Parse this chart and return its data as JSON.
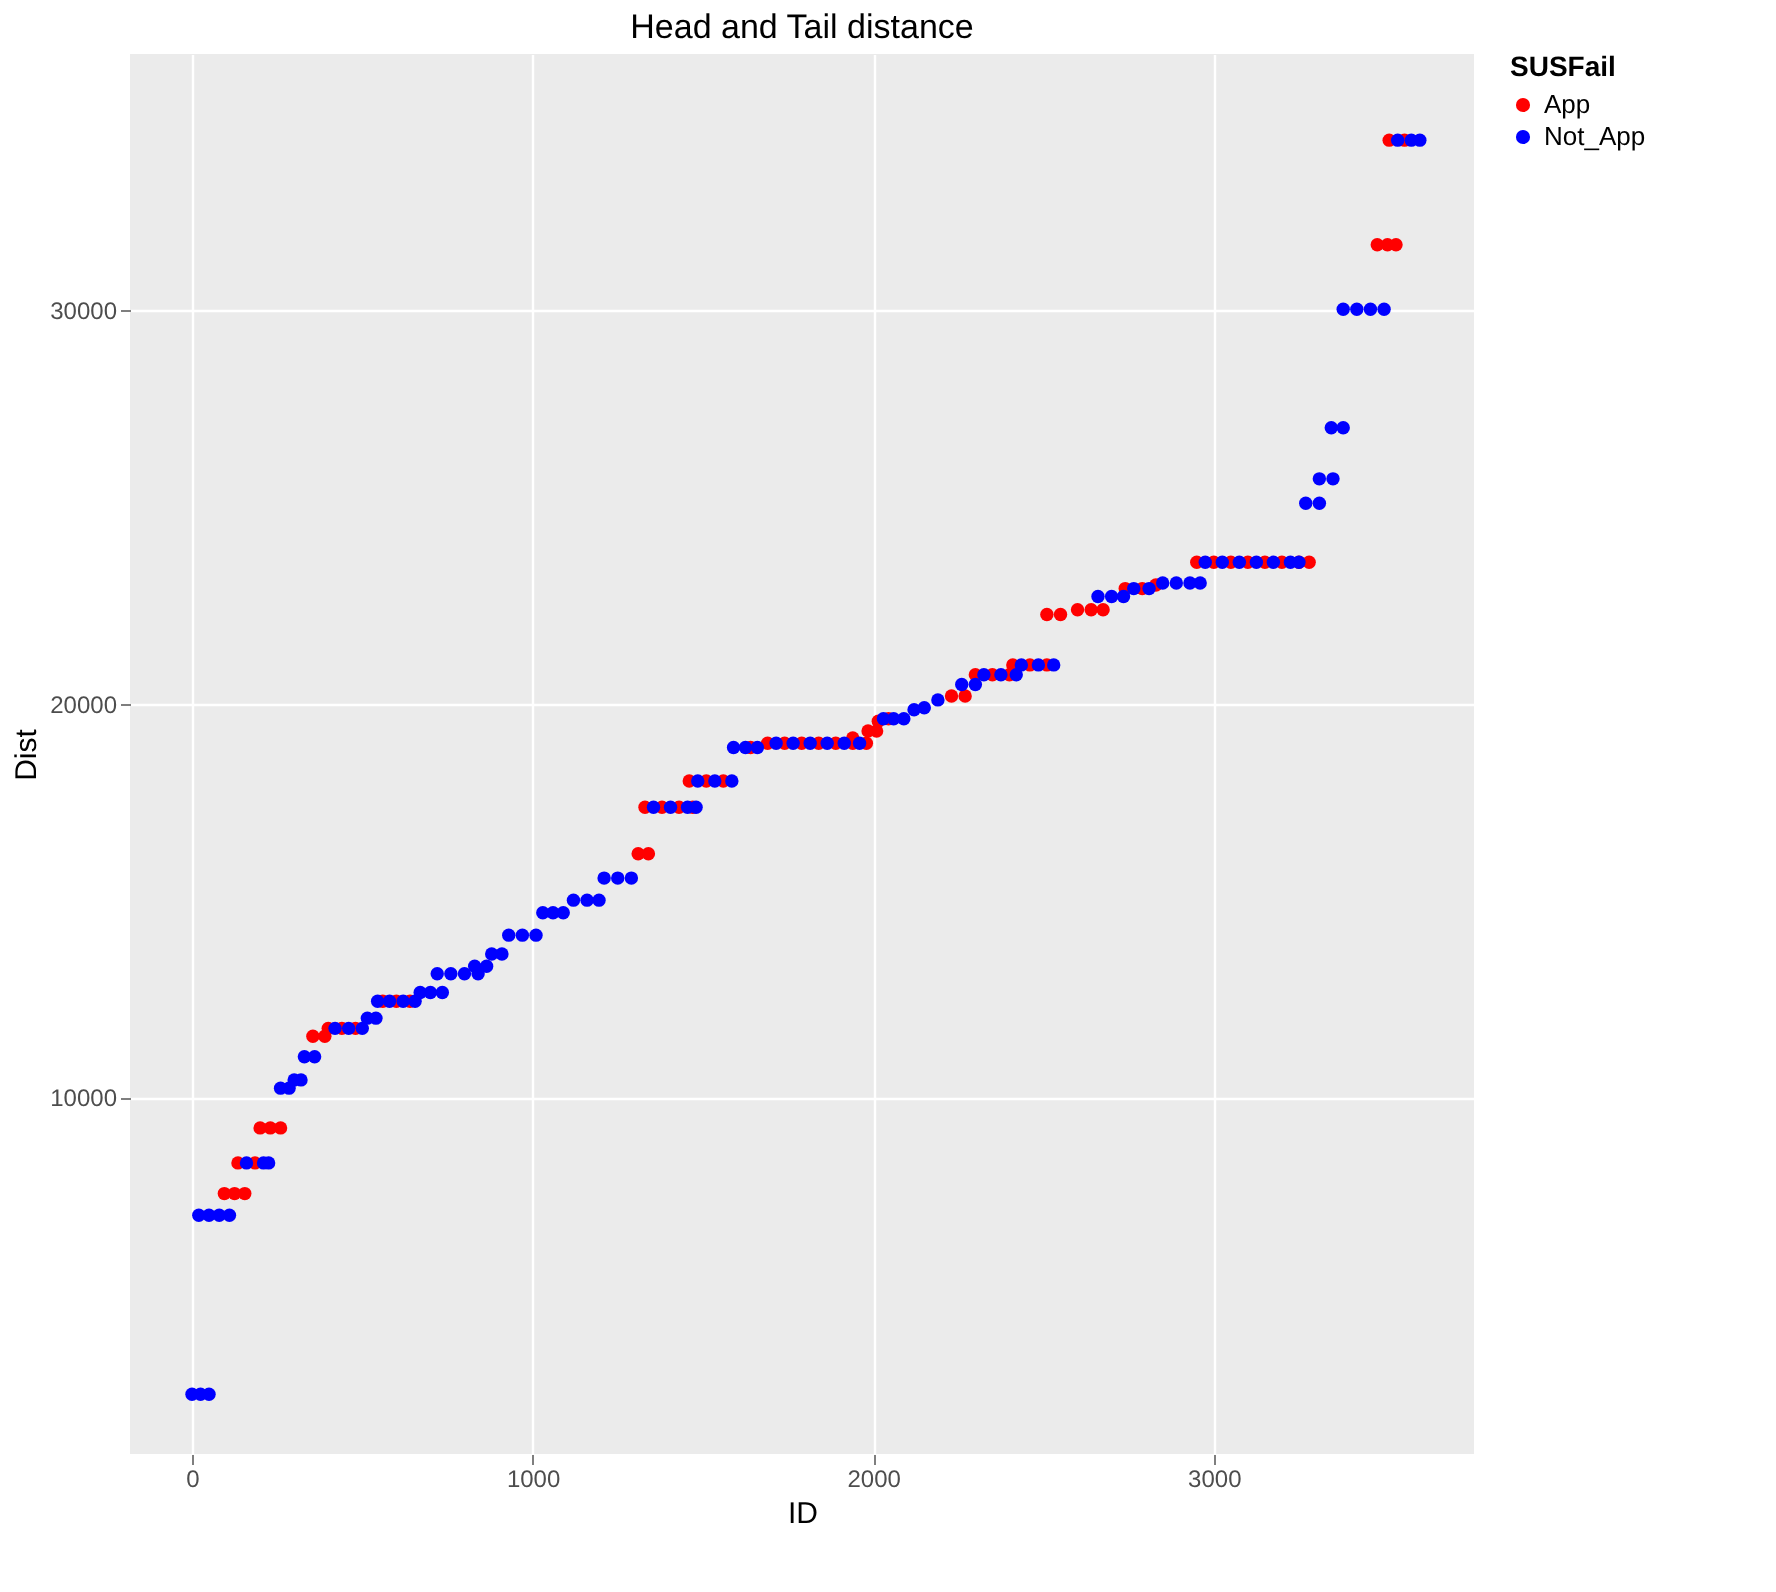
{
  "chart_data": {
    "type": "scatter",
    "title": "Head and Tail distance",
    "xlabel": "ID",
    "ylabel": "Dist",
    "legend_title": "SUSFail",
    "xlim": [
      -182,
      3764
    ],
    "xticks": [
      0,
      1000,
      2000,
      3000
    ],
    "ylim": [
      930,
      36520
    ],
    "yticks": [
      10000,
      20000,
      30000
    ],
    "grid": true,
    "legend": "right",
    "marker": "circle",
    "series": [
      {
        "name": "App",
        "color": "#ff0000",
        "x": [
          95,
          125,
          155,
          135,
          185,
          200,
          230,
          260,
          355,
          390,
          400,
          440,
          480,
          560,
          600,
          640,
          1310,
          1340,
          1330,
          1380,
          1430,
          1470,
          1460,
          1510,
          1560,
          1640,
          1690,
          1740,
          1790,
          1840,
          1890,
          1940,
          1980,
          1940,
          1985,
          2010,
          2015,
          2045,
          2230,
          2270,
          2300,
          2350,
          2400,
          2410,
          2460,
          2510,
          2510,
          2550,
          2600,
          2640,
          2675,
          2740,
          2790,
          2830,
          2950,
          3000,
          3050,
          3100,
          3150,
          3200,
          3250,
          3280,
          3480,
          3510,
          3535,
          3515,
          3560
        ],
        "values": [
          7550,
          7550,
          7550,
          8330,
          8330,
          9220,
          9220,
          9220,
          11550,
          11550,
          11750,
          11750,
          11750,
          12440,
          12440,
          12440,
          16190,
          16190,
          17370,
          17370,
          17370,
          17370,
          18040,
          18040,
          18040,
          18890,
          19000,
          19000,
          19000,
          19000,
          19000,
          19000,
          19000,
          19130,
          19310,
          19310,
          19560,
          19620,
          20200,
          20200,
          20740,
          20740,
          20740,
          20990,
          20990,
          20990,
          22270,
          22270,
          22390,
          22390,
          22390,
          22930,
          22930,
          23020,
          23600,
          23600,
          23600,
          23600,
          23600,
          23600,
          23600,
          23600,
          31670,
          31670,
          31670,
          34330,
          34330
        ]
      },
      {
        "name": "Not_App",
        "color": "#0000ff",
        "x": [
          0,
          25,
          50,
          20,
          50,
          80,
          110,
          160,
          210,
          225,
          260,
          285,
          300,
          320,
          330,
          360,
          420,
          460,
          500,
          515,
          540,
          545,
          580,
          620,
          655,
          670,
          700,
          735,
          720,
          760,
          800,
          840,
          830,
          865,
          880,
          910,
          930,
          970,
          1010,
          1030,
          1060,
          1090,
          1120,
          1160,
          1195,
          1210,
          1250,
          1290,
          1355,
          1405,
          1455,
          1480,
          1485,
          1535,
          1585,
          1590,
          1625,
          1660,
          1715,
          1765,
          1815,
          1865,
          1915,
          1960,
          2030,
          2060,
          2090,
          2120,
          2150,
          2190,
          2260,
          2300,
          2325,
          2375,
          2420,
          2435,
          2485,
          2530,
          2660,
          2700,
          2735,
          2765,
          2810,
          2850,
          2890,
          2930,
          2960,
          2975,
          3025,
          3075,
          3125,
          3175,
          3225,
          3250,
          3270,
          3310,
          3310,
          3350,
          3345,
          3380,
          3380,
          3420,
          3460,
          3500,
          3540,
          3580,
          3605
        ],
        "values": [
          2450,
          2450,
          2450,
          7000,
          7000,
          7000,
          7000,
          8330,
          8330,
          8330,
          10230,
          10230,
          10440,
          10440,
          11030,
          11030,
          11750,
          11750,
          11750,
          12010,
          12010,
          12440,
          12440,
          12440,
          12440,
          12660,
          12660,
          12660,
          13140,
          13140,
          13140,
          13140,
          13330,
          13330,
          13640,
          13640,
          14120,
          14120,
          14120,
          14690,
          14690,
          14690,
          15010,
          15010,
          15010,
          15570,
          15570,
          15570,
          17370,
          17370,
          17370,
          17370,
          18040,
          18040,
          18040,
          18890,
          18890,
          18890,
          19000,
          19000,
          19000,
          19000,
          19000,
          19000,
          19620,
          19620,
          19620,
          19850,
          19900,
          20100,
          20490,
          20490,
          20740,
          20740,
          20740,
          20990,
          20990,
          20990,
          22730,
          22730,
          22730,
          22930,
          22930,
          23070,
          23070,
          23070,
          23070,
          23600,
          23600,
          23600,
          23600,
          23600,
          23600,
          23600,
          25100,
          25100,
          25720,
          25720,
          27020,
          27020,
          30030,
          30030,
          30030,
          30030,
          34330,
          34330,
          34330
        ]
      }
    ]
  }
}
